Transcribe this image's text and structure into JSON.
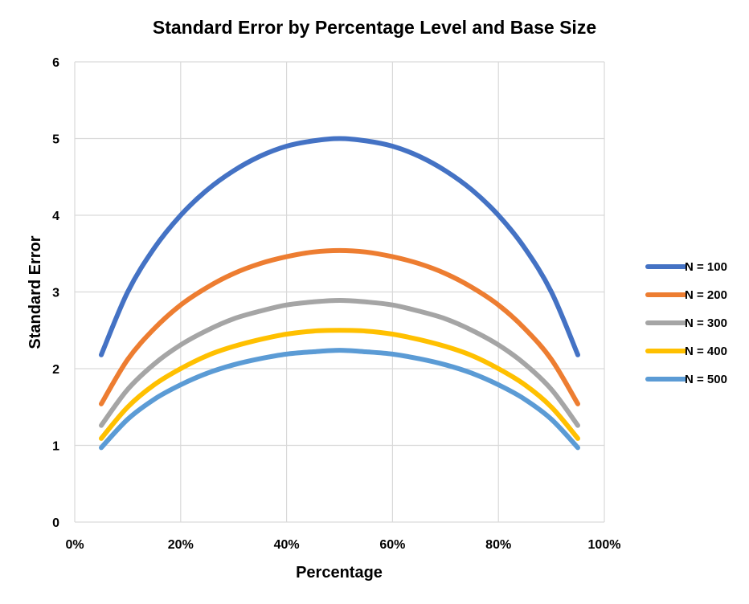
{
  "chart_data": {
    "type": "line",
    "title": "Standard Error by Percentage Level and Base Size",
    "xlabel": "Percentage",
    "ylabel": "Standard Error",
    "xlim": [
      0,
      100
    ],
    "ylim": [
      0,
      6
    ],
    "xticks": [
      "0%",
      "20%",
      "40%",
      "60%",
      "80%",
      "100%"
    ],
    "yticks": [
      "0",
      "1",
      "2",
      "3",
      "4",
      "5",
      "6"
    ],
    "grid": true,
    "legend_position": "right",
    "x": [
      5,
      10,
      15,
      20,
      25,
      30,
      35,
      40,
      45,
      50,
      55,
      60,
      65,
      70,
      75,
      80,
      85,
      90,
      95
    ],
    "series": [
      {
        "name": "N = 100",
        "color": "#4472c4",
        "values": [
          2.18,
          3.0,
          3.57,
          4.0,
          4.33,
          4.58,
          4.77,
          4.9,
          4.97,
          5.0,
          4.97,
          4.9,
          4.77,
          4.58,
          4.33,
          4.0,
          3.57,
          3.0,
          2.18
        ]
      },
      {
        "name": "N = 200",
        "color": "#ed7d31",
        "values": [
          1.54,
          2.12,
          2.52,
          2.83,
          3.06,
          3.24,
          3.37,
          3.46,
          3.52,
          3.54,
          3.52,
          3.46,
          3.37,
          3.24,
          3.06,
          2.83,
          2.52,
          2.12,
          1.54
        ]
      },
      {
        "name": "N = 300",
        "color": "#a5a5a5",
        "values": [
          1.26,
          1.73,
          2.06,
          2.31,
          2.5,
          2.65,
          2.75,
          2.83,
          2.87,
          2.89,
          2.87,
          2.83,
          2.75,
          2.65,
          2.5,
          2.31,
          2.06,
          1.73,
          1.26
        ]
      },
      {
        "name": "N = 400",
        "color": "#ffc000",
        "values": [
          1.09,
          1.5,
          1.79,
          2.0,
          2.17,
          2.29,
          2.38,
          2.45,
          2.49,
          2.5,
          2.49,
          2.45,
          2.38,
          2.29,
          2.17,
          2.0,
          1.79,
          1.5,
          1.09
        ]
      },
      {
        "name": "N = 500",
        "color": "#5b9bd5",
        "values": [
          0.97,
          1.34,
          1.6,
          1.79,
          1.94,
          2.05,
          2.13,
          2.19,
          2.22,
          2.24,
          2.22,
          2.19,
          2.13,
          2.05,
          1.94,
          1.79,
          1.6,
          1.34,
          0.97
        ]
      }
    ]
  }
}
